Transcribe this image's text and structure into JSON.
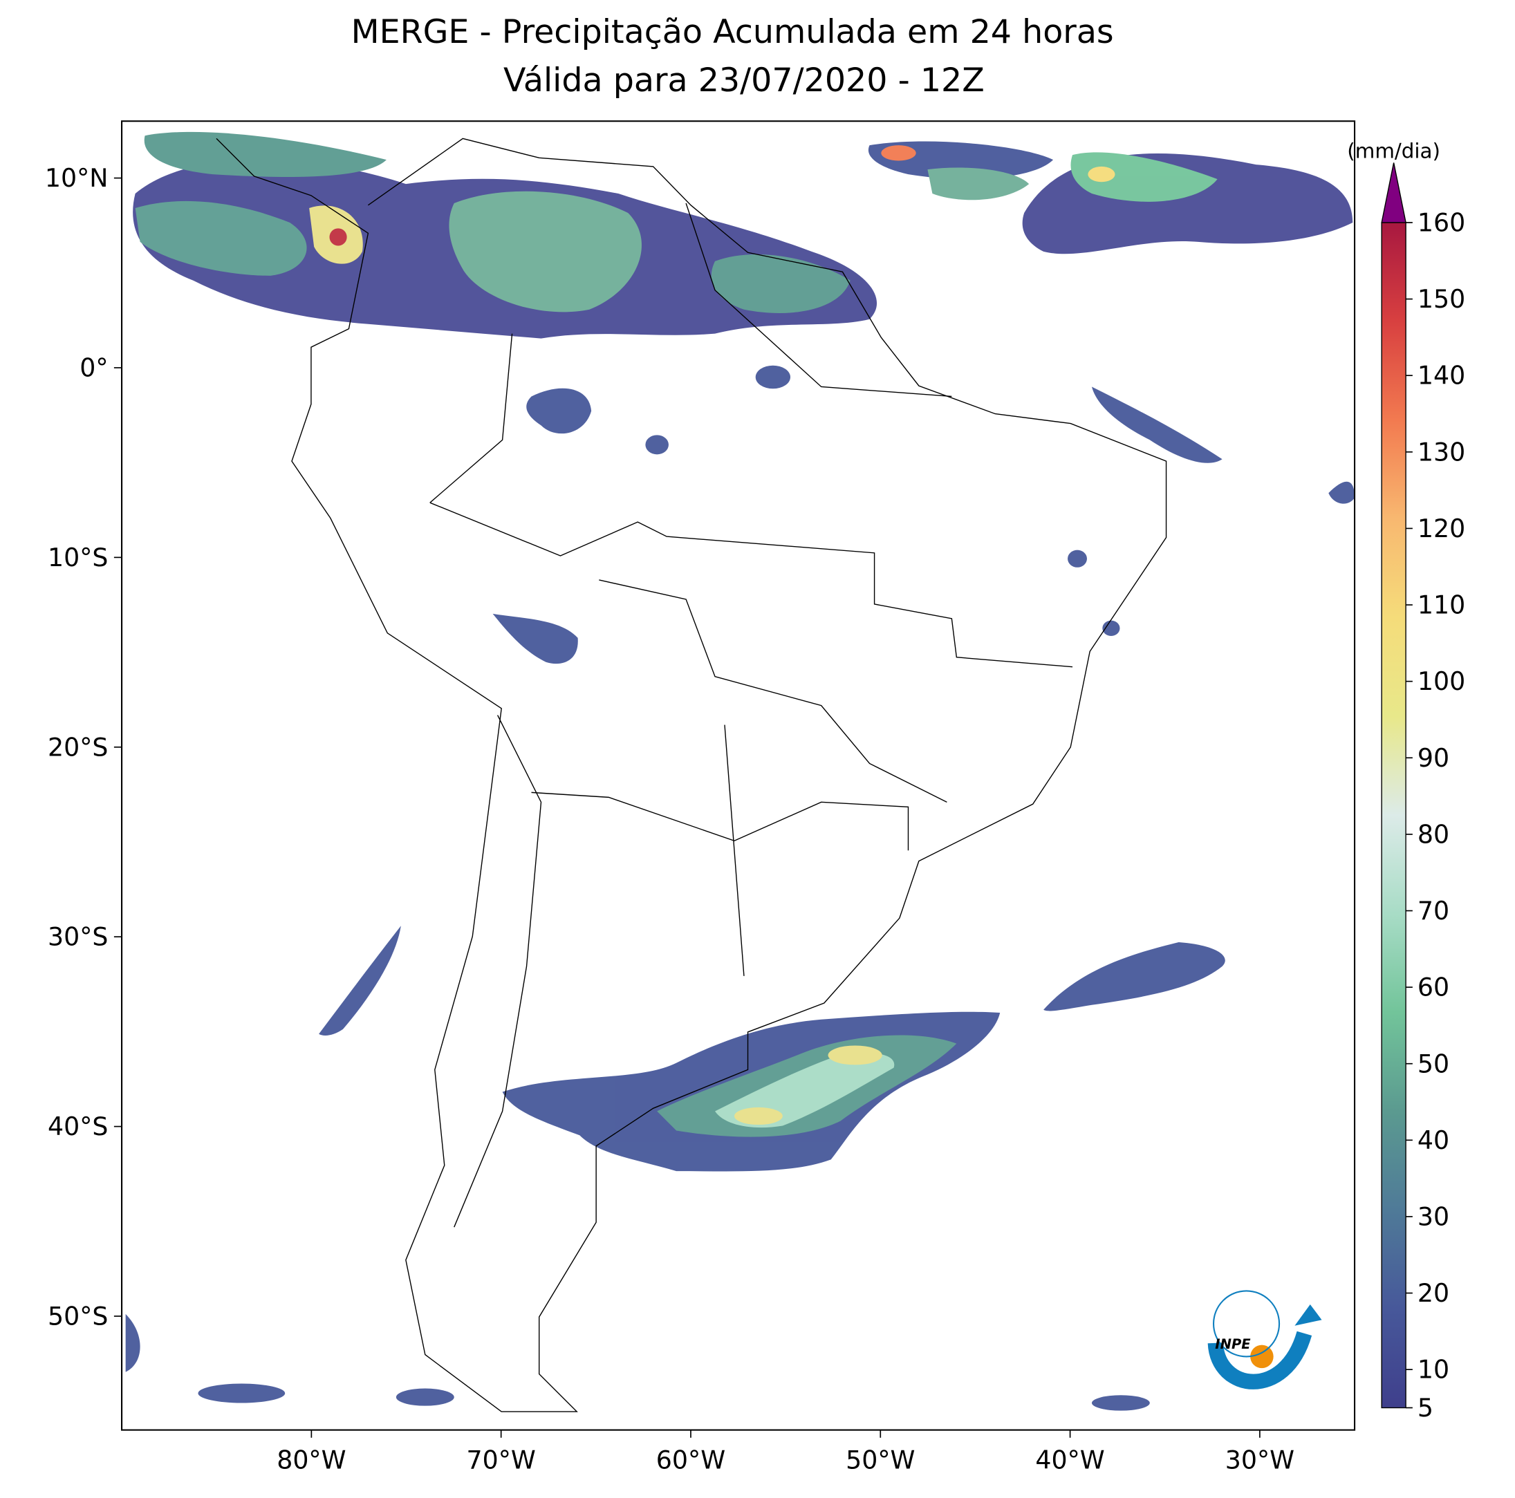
{
  "title": "MERGE - Precipitação Acumulada em 24 horas",
  "subtitle": "Válida para 23/07/2020 - 12Z",
  "map": {
    "xlim": [
      -90,
      -25
    ],
    "ylim": [
      -56,
      13
    ],
    "xticks": [
      {
        "value": -80,
        "label": "80°W"
      },
      {
        "value": -70,
        "label": "70°W"
      },
      {
        "value": -60,
        "label": "60°W"
      },
      {
        "value": -50,
        "label": "50°W"
      },
      {
        "value": -40,
        "label": "40°W"
      },
      {
        "value": -30,
        "label": "30°W"
      }
    ],
    "yticks": [
      {
        "value": 10,
        "label": "10°N"
      },
      {
        "value": 0,
        "label": "0°"
      },
      {
        "value": -10,
        "label": "10°S"
      },
      {
        "value": -20,
        "label": "20°S"
      },
      {
        "value": -30,
        "label": "30°S"
      },
      {
        "value": -40,
        "label": "40°S"
      },
      {
        "value": -50,
        "label": "50°S"
      }
    ]
  },
  "colorbar": {
    "label": "(mm/dia)",
    "ylim": [
      5,
      160
    ],
    "yticks": [
      5,
      10,
      20,
      30,
      40,
      50,
      60,
      70,
      80,
      90,
      100,
      110,
      120,
      130,
      140,
      150,
      160
    ],
    "colors": [
      "#3f3f8c",
      "#47589a",
      "#4f7a98",
      "#5b9a90",
      "#72c49a",
      "#a8dcc6",
      "#dcebe8",
      "#e8e88a",
      "#f5dc7a",
      "#f8b870",
      "#f27a50",
      "#d84040",
      "#a81840"
    ],
    "extend_color": "#800080"
  },
  "logo": "INPE"
}
